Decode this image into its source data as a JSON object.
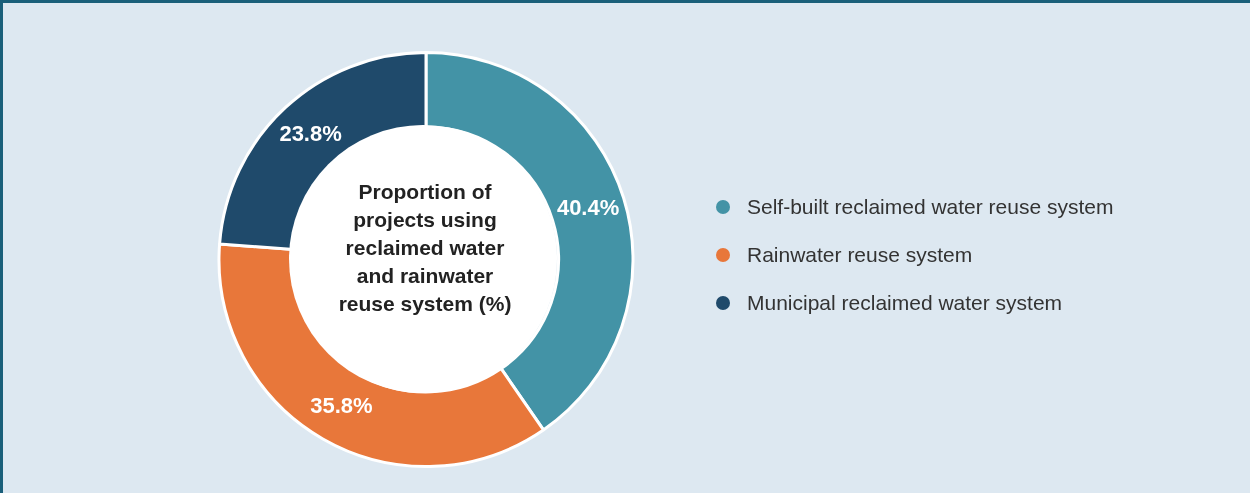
{
  "chart_data": {
    "type": "donut",
    "title": "Proportion of projects using reclaimed water and rainwater reuse system (%)",
    "categories": [
      "Self-built reclaimed water reuse system",
      "Rainwater reuse system",
      "Municipal reclaimed water system"
    ],
    "values": [
      40.4,
      35.8,
      23.8
    ],
    "colors": [
      "#4393a6",
      "#e8773a",
      "#1f4a6b"
    ],
    "value_labels": [
      "40.4%",
      "35.8%",
      "23.8%"
    ],
    "legend": "right"
  }
}
